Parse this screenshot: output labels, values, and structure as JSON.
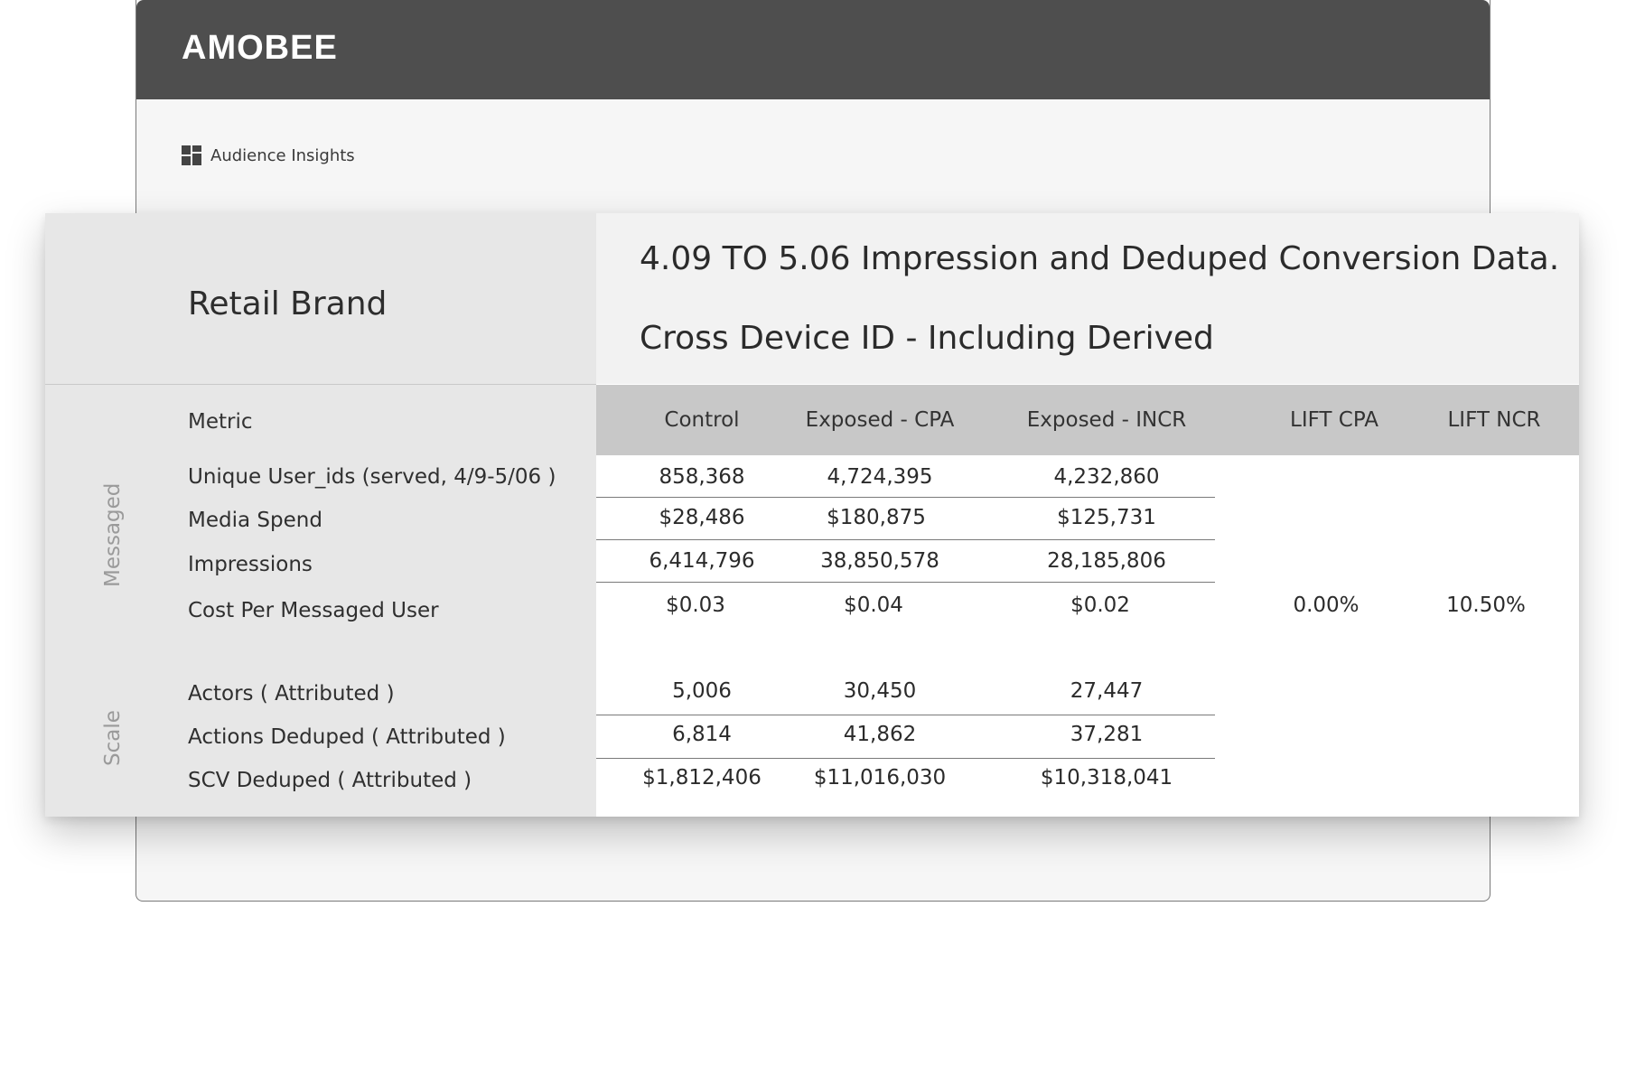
{
  "app": {
    "brand": "AMOBEE",
    "breadcrumb": "Audience Insights"
  },
  "report": {
    "brand_name": "Retail Brand",
    "title": "4.09 TO 5.06 Impression and Deduped Conversion Data.",
    "subtitle": "Cross Device ID - Including Derived",
    "metric_header": "Metric",
    "columns": [
      "Control",
      "Exposed - CPA",
      "Exposed - INCR",
      "LIFT CPA",
      "LIFT NCR"
    ],
    "groups": {
      "messaged": "Messaged",
      "scale": "Scale"
    },
    "rows": [
      {
        "label": "Unique User_ids (served, 4/9-5/06 )",
        "values": [
          "858,368",
          "4,724,395",
          "4,232,860"
        ]
      },
      {
        "label": "Media Spend",
        "values": [
          "$28,486",
          "$180,875",
          "$125,731"
        ]
      },
      {
        "label": "Impressions",
        "values": [
          "6,414,796",
          "38,850,578",
          "28,185,806"
        ]
      },
      {
        "label": "Cost Per Messaged User",
        "values": [
          "$0.03",
          "$0.04",
          "$0.02"
        ]
      },
      {
        "label": "Actors ( Attributed )",
        "values": [
          "5,006",
          "30,450",
          "27,447"
        ]
      },
      {
        "label": "Actions Deduped ( Attributed )",
        "values": [
          "6,814",
          "41,862",
          "37,281"
        ]
      },
      {
        "label": "SCV Deduped ( Attributed )",
        "values": [
          "$1,812,406",
          "$11,016,030",
          "$10,318,041"
        ]
      }
    ],
    "lift": {
      "cpa": "0.00%",
      "ncr": "10.50%"
    }
  }
}
